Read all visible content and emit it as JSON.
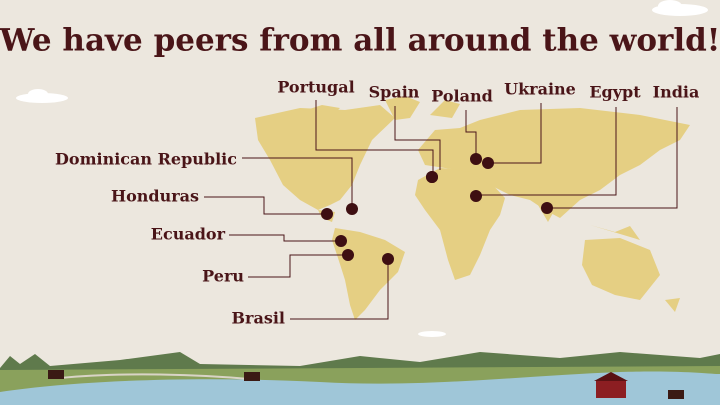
{
  "title": "We have peers from all around the world!",
  "locations": [
    {
      "label": "Portugal"
    },
    {
      "label": "Spain"
    },
    {
      "label": "Poland"
    },
    {
      "label": "Ukraine"
    },
    {
      "label": "Egypt"
    },
    {
      "label": "India"
    },
    {
      "label": "Dominican Republic"
    },
    {
      "label": "Honduras"
    },
    {
      "label": "Ecuador"
    },
    {
      "label": "Peru"
    },
    {
      "label": "Brasil"
    }
  ]
}
